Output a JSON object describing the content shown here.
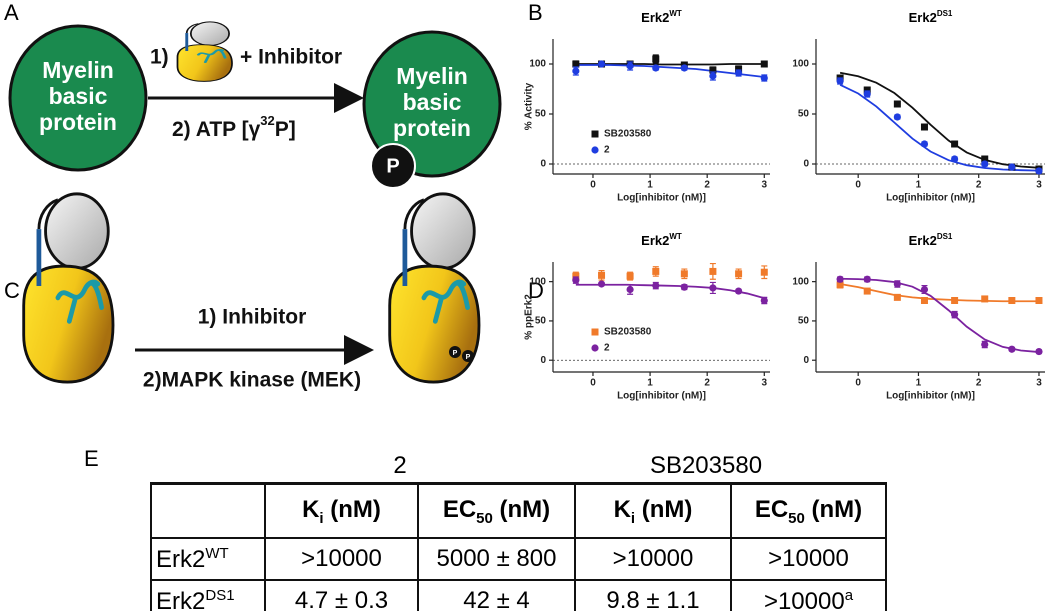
{
  "panel_a": {
    "label": "A",
    "substrate_left": [
      "Myelin",
      "basic",
      "protein"
    ],
    "step1": "1)",
    "inhibitor": "+ Inhibitor",
    "step2": "2) ATP [γ",
    "step2_sup": "32",
    "step2_end": "P]",
    "substrate_right": [
      "Myelin",
      "basic",
      "protein"
    ],
    "phospho": "P"
  },
  "panel_b": {
    "label": "B"
  },
  "panel_c": {
    "label": "C",
    "step1": "1) Inhibitor",
    "step2": "2)MAPK kinase (MEK)",
    "phospho": [
      "P",
      "P"
    ]
  },
  "panel_d": {
    "label": "D"
  },
  "chart_data": [
    {
      "type": "scatter",
      "title": "Erk2",
      "title_sup": "WT",
      "y_label": "% Activity",
      "x_label": "Log[inhibitor (nM)]",
      "xlim": [
        -0.7,
        3.1
      ],
      "xticks": [
        0,
        1,
        2,
        3
      ],
      "ylim": [
        -10,
        125
      ],
      "yticks": [
        0,
        50,
        100
      ],
      "hline": 0,
      "legend": "lower left",
      "x": [
        -0.3,
        0.15,
        0.65,
        1.1,
        1.6,
        2.1,
        2.55,
        3.0
      ],
      "fit_x": [
        -0.3,
        0,
        0.3,
        0.6,
        0.9,
        1.2,
        1.5,
        1.8,
        2.1,
        2.4,
        2.7,
        3.0
      ],
      "series": [
        {
          "name": "SB203580",
          "color": "#111111",
          "marker": "square",
          "values": [
            100,
            100,
            100,
            105,
            99,
            94,
            95,
            100
          ],
          "errors": [
            3,
            2,
            2,
            4,
            2,
            3,
            3,
            2
          ],
          "fit": [
            100,
            100,
            100,
            100,
            100,
            99.5,
            99.5,
            99.5,
            99.5,
            100,
            100,
            100
          ]
        },
        {
          "name": "2",
          "color": "#1f3de0",
          "marker": "circle",
          "values": [
            93,
            100,
            98,
            96,
            96,
            88,
            91,
            86
          ],
          "errors": [
            4,
            2,
            4,
            2,
            2,
            4,
            3,
            3
          ],
          "fit": [
            99,
            99,
            99,
            98.5,
            98,
            97,
            96,
            95,
            93,
            91,
            89,
            87
          ]
        }
      ]
    },
    {
      "type": "scatter",
      "title": "Erk2",
      "title_sup": "DS1",
      "x_label": "Log[inhibitor (nM)]",
      "xlim": [
        -0.7,
        3.1
      ],
      "xticks": [
        0,
        1,
        2,
        3
      ],
      "ylim": [
        -10,
        125
      ],
      "yticks": [
        0,
        50,
        100
      ],
      "hline": 0,
      "x": [
        -0.3,
        0.15,
        0.65,
        1.1,
        1.6,
        2.1,
        2.55,
        3.0
      ],
      "fit_x": [
        -0.3,
        0,
        0.3,
        0.6,
        0.9,
        1.2,
        1.5,
        1.8,
        2.1,
        2.4,
        2.7,
        3.0
      ],
      "series": [
        {
          "color": "#111111",
          "marker": "square",
          "values": [
            86,
            74,
            60,
            37,
            20,
            5,
            -3,
            -5
          ],
          "errors": [
            2,
            2,
            2,
            2,
            2,
            2,
            2,
            2
          ],
          "fit": [
            91.2,
            87.7,
            81.3,
            71,
            56.3,
            39.3,
            23.5,
            11.6,
            4.1,
            -0.2,
            -2.5,
            -3.8
          ]
        },
        {
          "color": "#1f3de0",
          "marker": "circle",
          "values": [
            83,
            70,
            47,
            20,
            5,
            0,
            -3,
            -7
          ],
          "errors": [
            3,
            3,
            2,
            2,
            2,
            2,
            2,
            2
          ],
          "fit": [
            79.2,
            70.5,
            57.6,
            41.5,
            25.4,
            12.5,
            3.8,
            -1.2,
            -4,
            -5.5,
            -6.2,
            -6.6
          ]
        }
      ]
    },
    {
      "type": "scatter",
      "title": "Erk2",
      "title_sup": "WT",
      "y_label": "% ppErk2",
      "x_label": "Log[inhibitor (nM)]",
      "xlim": [
        -0.7,
        3.1
      ],
      "xticks": [
        0,
        1,
        2,
        3
      ],
      "ylim": [
        -15,
        125
      ],
      "yticks": [
        0,
        50,
        100
      ],
      "hline": 0,
      "legend": "lower left",
      "x": [
        -0.3,
        0.15,
        0.65,
        1.1,
        1.6,
        2.1,
        2.55,
        3.0
      ],
      "fit_x": [
        -0.3,
        0,
        0.3,
        0.6,
        0.9,
        1.2,
        1.5,
        1.8,
        2.1,
        2.4,
        2.7,
        3.0
      ],
      "series": [
        {
          "name": "SB203580",
          "color": "#f07a2a",
          "marker": "square",
          "values": [
            107,
            108,
            107,
            113,
            110,
            113,
            110,
            112
          ],
          "errors": [
            5,
            6,
            5,
            6,
            6,
            10,
            6,
            8
          ]
        },
        {
          "name": "2",
          "color": "#7b22a0",
          "marker": "circle",
          "values": [
            102,
            97,
            90,
            95,
            93,
            92,
            88,
            76
          ],
          "errors": [
            4,
            2,
            6,
            4,
            3,
            7,
            2,
            4
          ],
          "fit": [
            96,
            96,
            96,
            96,
            95.5,
            95,
            94.5,
            93.5,
            92,
            89,
            85,
            79
          ]
        }
      ]
    },
    {
      "type": "scatter",
      "title": "Erk2",
      "title_sup": "DS1",
      "x_label": "Log[inhibitor (nM)]",
      "xlim": [
        -0.7,
        3.1
      ],
      "xticks": [
        0,
        1,
        2,
        3
      ],
      "ylim": [
        -15,
        125
      ],
      "yticks": [
        0,
        50,
        100
      ],
      "x": [
        -0.3,
        0.15,
        0.65,
        1.1,
        1.6,
        2.1,
        2.55,
        3.0
      ],
      "fit_x": [
        -0.3,
        0,
        0.3,
        0.6,
        0.9,
        1.2,
        1.5,
        1.8,
        2.1,
        2.4,
        2.7,
        3.0
      ],
      "series": [
        {
          "color": "#f07a2a",
          "marker": "square",
          "values": [
            96,
            88,
            80,
            76,
            76,
            78,
            76,
            76
          ],
          "errors": [
            4,
            2,
            2,
            2,
            2,
            2,
            2,
            2
          ],
          "fit": [
            97,
            93,
            88,
            83,
            80,
            78,
            77,
            76,
            75.5,
            75,
            75,
            75
          ]
        },
        {
          "color": "#7b22a0",
          "marker": "circle",
          "values": [
            103,
            103,
            97,
            90,
            58,
            20,
            14,
            11
          ],
          "errors": [
            3,
            3,
            4,
            5,
            4,
            4,
            2,
            2
          ],
          "fit": [
            103.7,
            103.2,
            102.1,
            99.5,
            93.6,
            82,
            63.6,
            42.7,
            26.4,
            16.9,
            12.4,
            10.4
          ]
        }
      ]
    }
  ],
  "table": {
    "label": "E",
    "groups": [
      "2",
      "SB203580"
    ],
    "columns": [
      {
        "main": "K",
        "sub": "i",
        "rest": " (nM)"
      },
      {
        "main": "EC",
        "sub": "50",
        "rest": " (nM)"
      },
      {
        "main": "K",
        "sub": "i",
        "rest": " (nM)"
      },
      {
        "main": "EC",
        "sub": "50",
        "rest": " (nM)"
      }
    ],
    "rows": [
      {
        "name": "Erk2",
        "sup": "WT",
        "cells": [
          ">10000",
          "5000 ± 800",
          ">10000",
          ">10000"
        ]
      },
      {
        "name": "Erk2",
        "sup": "DS1",
        "cells": [
          "4.7 ± 0.3",
          "42 ± 4",
          "9.8 ± 1.1",
          {
            "text": ">10000",
            "sup": "a"
          }
        ]
      }
    ]
  }
}
